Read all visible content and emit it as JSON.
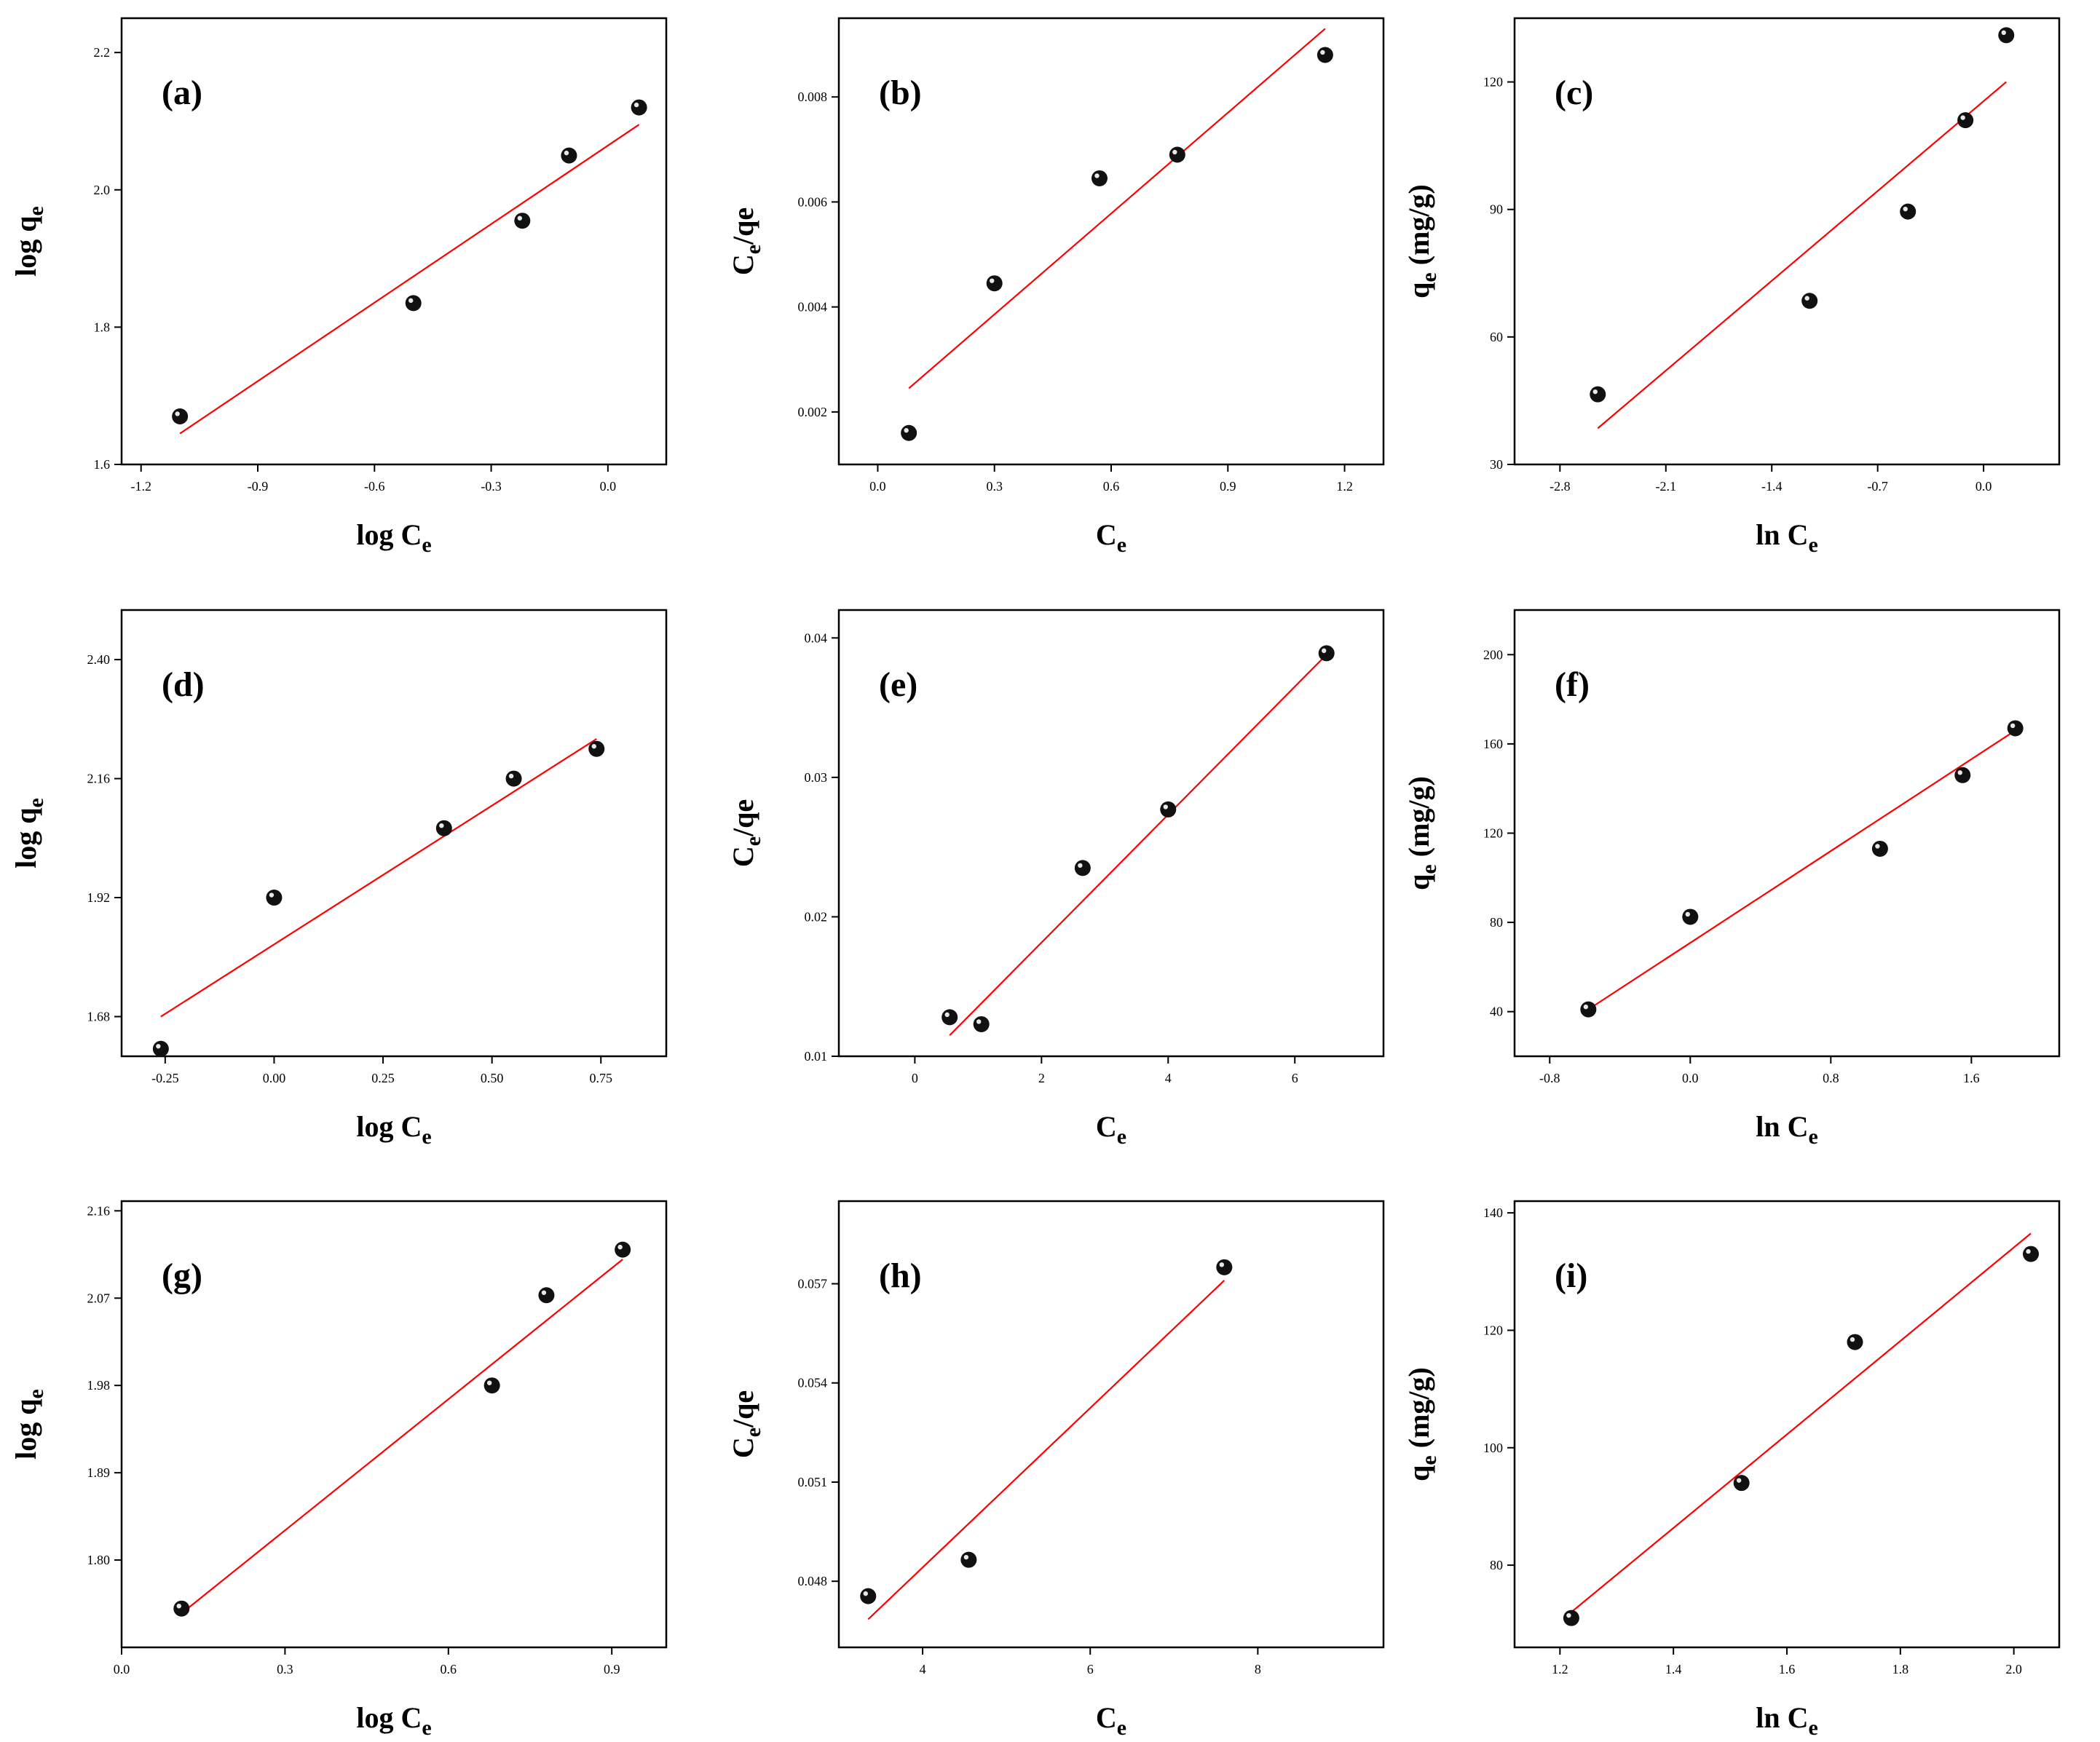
{
  "chart_data": [
    {
      "type": "scatter",
      "panel_label": "(a)",
      "xlabel": "log C",
      "xlabel_sub": "e",
      "ylabel": "log q",
      "ylabel_sub": "e",
      "xlim": [
        -1.25,
        0.15
      ],
      "ylim": [
        1.6,
        2.25
      ],
      "xticks": [
        -1.2,
        -0.9,
        -0.6,
        -0.3,
        0.0
      ],
      "xtick_labels": [
        "-1.2",
        "-0.9",
        "-0.6",
        "-0.3",
        "0.0"
      ],
      "yticks": [
        1.6,
        1.8,
        2.0,
        2.2
      ],
      "ytick_labels": [
        "1.6",
        "1.8",
        "2.0",
        "2.2"
      ],
      "points": {
        "x": [
          -1.1,
          -0.5,
          -0.22,
          -0.1,
          0.08
        ],
        "y": [
          1.67,
          1.835,
          1.955,
          2.05,
          2.12
        ]
      },
      "fit": {
        "x": [
          -1.1,
          0.08
        ],
        "y": [
          1.645,
          2.095
        ]
      },
      "grid": false
    },
    {
      "type": "scatter",
      "panel_label": "(b)",
      "xlabel": "C",
      "xlabel_sub": "e",
      "ylabel": "C",
      "ylabel_sub": "e",
      "ylabel_suffix": "/qe",
      "xlim": [
        -0.1,
        1.3
      ],
      "ylim": [
        0.001,
        0.0095
      ],
      "xticks": [
        0.0,
        0.3,
        0.6,
        0.9,
        1.2
      ],
      "xtick_labels": [
        "0.0",
        "0.3",
        "0.6",
        "0.9",
        "1.2"
      ],
      "yticks": [
        0.002,
        0.004,
        0.006,
        0.008
      ],
      "ytick_labels": [
        "0.002",
        "0.004",
        "0.006",
        "0.008"
      ],
      "points": {
        "x": [
          0.08,
          0.3,
          0.57,
          0.77,
          1.15
        ],
        "y": [
          0.0016,
          0.00445,
          0.00645,
          0.0069,
          0.0088
        ]
      },
      "fit": {
        "x": [
          0.08,
          1.15
        ],
        "y": [
          0.00245,
          0.0093
        ]
      },
      "grid": false
    },
    {
      "type": "scatter",
      "panel_label": "(c)",
      "xlabel": "ln C",
      "xlabel_sub": "e",
      "ylabel": "q",
      "ylabel_sub": "e",
      "ylabel_suffix": " (mg/g)",
      "xlim": [
        -3.1,
        0.5
      ],
      "ylim": [
        30,
        135
      ],
      "xticks": [
        -2.8,
        -2.1,
        -1.4,
        -0.7,
        0.0
      ],
      "xtick_labels": [
        "-2.8",
        "-2.1",
        "-1.4",
        "-0.7",
        "0.0"
      ],
      "yticks": [
        30,
        60,
        90,
        120
      ],
      "ytick_labels": [
        "30",
        "60",
        "90",
        "120"
      ],
      "points": {
        "x": [
          -2.55,
          -1.15,
          -0.5,
          -0.12,
          0.15
        ],
        "y": [
          46.5,
          68.5,
          89.5,
          111,
          131
        ]
      },
      "fit": {
        "x": [
          -2.55,
          0.15
        ],
        "y": [
          38.5,
          120
        ]
      },
      "grid": false
    },
    {
      "type": "scatter",
      "panel_label": "(d)",
      "xlabel": "log C",
      "xlabel_sub": "e",
      "ylabel": "log q",
      "ylabel_sub": "e",
      "xlim": [
        -0.35,
        0.9
      ],
      "ylim": [
        1.6,
        2.5
      ],
      "xticks": [
        -0.25,
        0.0,
        0.25,
        0.5,
        0.75
      ],
      "xtick_labels": [
        "-0.25",
        "0.00",
        "0.25",
        "0.50",
        "0.75"
      ],
      "yticks": [
        1.68,
        1.92,
        2.16,
        2.4
      ],
      "ytick_labels": [
        "1.68",
        "1.92",
        "2.16",
        "2.40"
      ],
      "points": {
        "x": [
          -0.26,
          0.0,
          0.39,
          0.55,
          0.74
        ],
        "y": [
          1.615,
          1.92,
          2.06,
          2.16,
          2.22
        ]
      },
      "fit": {
        "x": [
          -0.26,
          0.74
        ],
        "y": [
          1.68,
          2.24
        ]
      },
      "grid": false
    },
    {
      "type": "scatter",
      "panel_label": "(e)",
      "xlabel": "C",
      "xlabel_sub": "e",
      "ylabel": "C",
      "ylabel_sub": "e",
      "ylabel_suffix": "/qe",
      "xlim": [
        -1.2,
        7.4
      ],
      "ylim": [
        0.01,
        0.042
      ],
      "xticks": [
        0,
        2,
        4,
        6
      ],
      "xtick_labels": [
        "0",
        "2",
        "4",
        "6"
      ],
      "yticks": [
        0.01,
        0.02,
        0.03,
        0.04
      ],
      "ytick_labels": [
        "0.01",
        "0.02",
        "0.03",
        "0.04"
      ],
      "points": {
        "x": [
          0.55,
          1.05,
          2.65,
          4.0,
          6.5
        ],
        "y": [
          0.0128,
          0.0123,
          0.0235,
          0.0277,
          0.0389
        ]
      },
      "fit": {
        "x": [
          0.55,
          6.5
        ],
        "y": [
          0.0115,
          0.0388
        ]
      },
      "grid": false
    },
    {
      "type": "scatter",
      "panel_label": "(f)",
      "xlabel": "ln C",
      "xlabel_sub": "e",
      "ylabel": "q",
      "ylabel_sub": "e",
      "ylabel_suffix": " (mg/g)",
      "xlim": [
        -1.0,
        2.1
      ],
      "ylim": [
        20,
        220
      ],
      "xticks": [
        -0.8,
        0.0,
        0.8,
        1.6
      ],
      "xtick_labels": [
        "-0.8",
        "0.0",
        "0.8",
        "1.6"
      ],
      "yticks": [
        40,
        80,
        120,
        160,
        200
      ],
      "ytick_labels": [
        "40",
        "80",
        "120",
        "160",
        "200"
      ],
      "points": {
        "x": [
          -0.58,
          0.0,
          1.08,
          1.55,
          1.85
        ],
        "y": [
          41,
          82.5,
          113,
          146,
          167
        ]
      },
      "fit": {
        "x": [
          -0.58,
          1.85
        ],
        "y": [
          41,
          166
        ]
      },
      "grid": false
    },
    {
      "type": "scatter",
      "panel_label": "(g)",
      "xlabel": "log C",
      "xlabel_sub": "e",
      "ylabel": "log q",
      "ylabel_sub": "e",
      "xlim": [
        0.0,
        1.0
      ],
      "ylim": [
        1.71,
        2.17
      ],
      "xticks": [
        0.0,
        0.3,
        0.6,
        0.9
      ],
      "xtick_labels": [
        "0.0",
        "0.3",
        "0.6",
        "0.9"
      ],
      "yticks": [
        1.8,
        1.89,
        1.98,
        2.07,
        2.16
      ],
      "ytick_labels": [
        "1.80",
        "1.89",
        "1.98",
        "2.07",
        "2.16"
      ],
      "points": {
        "x": [
          0.11,
          0.68,
          0.78,
          0.92
        ],
        "y": [
          1.75,
          1.98,
          2.073,
          2.12
        ]
      },
      "fit": {
        "x": [
          0.11,
          0.92
        ],
        "y": [
          1.745,
          2.11
        ]
      },
      "grid": false
    },
    {
      "type": "scatter",
      "panel_label": "(h)",
      "xlabel": "C",
      "xlabel_sub": "e",
      "ylabel": "C",
      "ylabel_sub": "e",
      "ylabel_suffix": "/qe",
      "xlim": [
        3.0,
        9.5
      ],
      "ylim": [
        0.046,
        0.0595
      ],
      "xticks": [
        4,
        6,
        8
      ],
      "xtick_labels": [
        "4",
        "6",
        "8"
      ],
      "yticks": [
        0.048,
        0.051,
        0.054,
        0.057
      ],
      "ytick_labels": [
        "0.048",
        "0.051",
        "0.054",
        "0.057"
      ],
      "points": {
        "x": [
          3.35,
          4.55,
          7.6
        ],
        "y": [
          0.04755,
          0.04865,
          0.0575
        ]
      },
      "fit": {
        "x": [
          3.35,
          7.6
        ],
        "y": [
          0.04685,
          0.0571
        ]
      },
      "grid": false
    },
    {
      "type": "scatter",
      "panel_label": "(i)",
      "xlabel": "ln C",
      "xlabel_sub": "e",
      "ylabel": "q",
      "ylabel_sub": "e",
      "ylabel_suffix": " (mg/g)",
      "xlim": [
        1.12,
        2.08
      ],
      "ylim": [
        66,
        142
      ],
      "xticks": [
        1.2,
        1.4,
        1.6,
        1.8,
        2.0
      ],
      "xtick_labels": [
        "1.2",
        "1.4",
        "1.6",
        "1.8",
        "2.0"
      ],
      "yticks": [
        80,
        100,
        120,
        140
      ],
      "ytick_labels": [
        "80",
        "100",
        "120",
        "140"
      ],
      "points": {
        "x": [
          1.22,
          1.52,
          1.72,
          2.03
        ],
        "y": [
          71,
          94,
          118,
          133
        ]
      },
      "fit": {
        "x": [
          1.22,
          2.03
        ],
        "y": [
          72,
          136.5
        ]
      },
      "grid": false
    }
  ]
}
